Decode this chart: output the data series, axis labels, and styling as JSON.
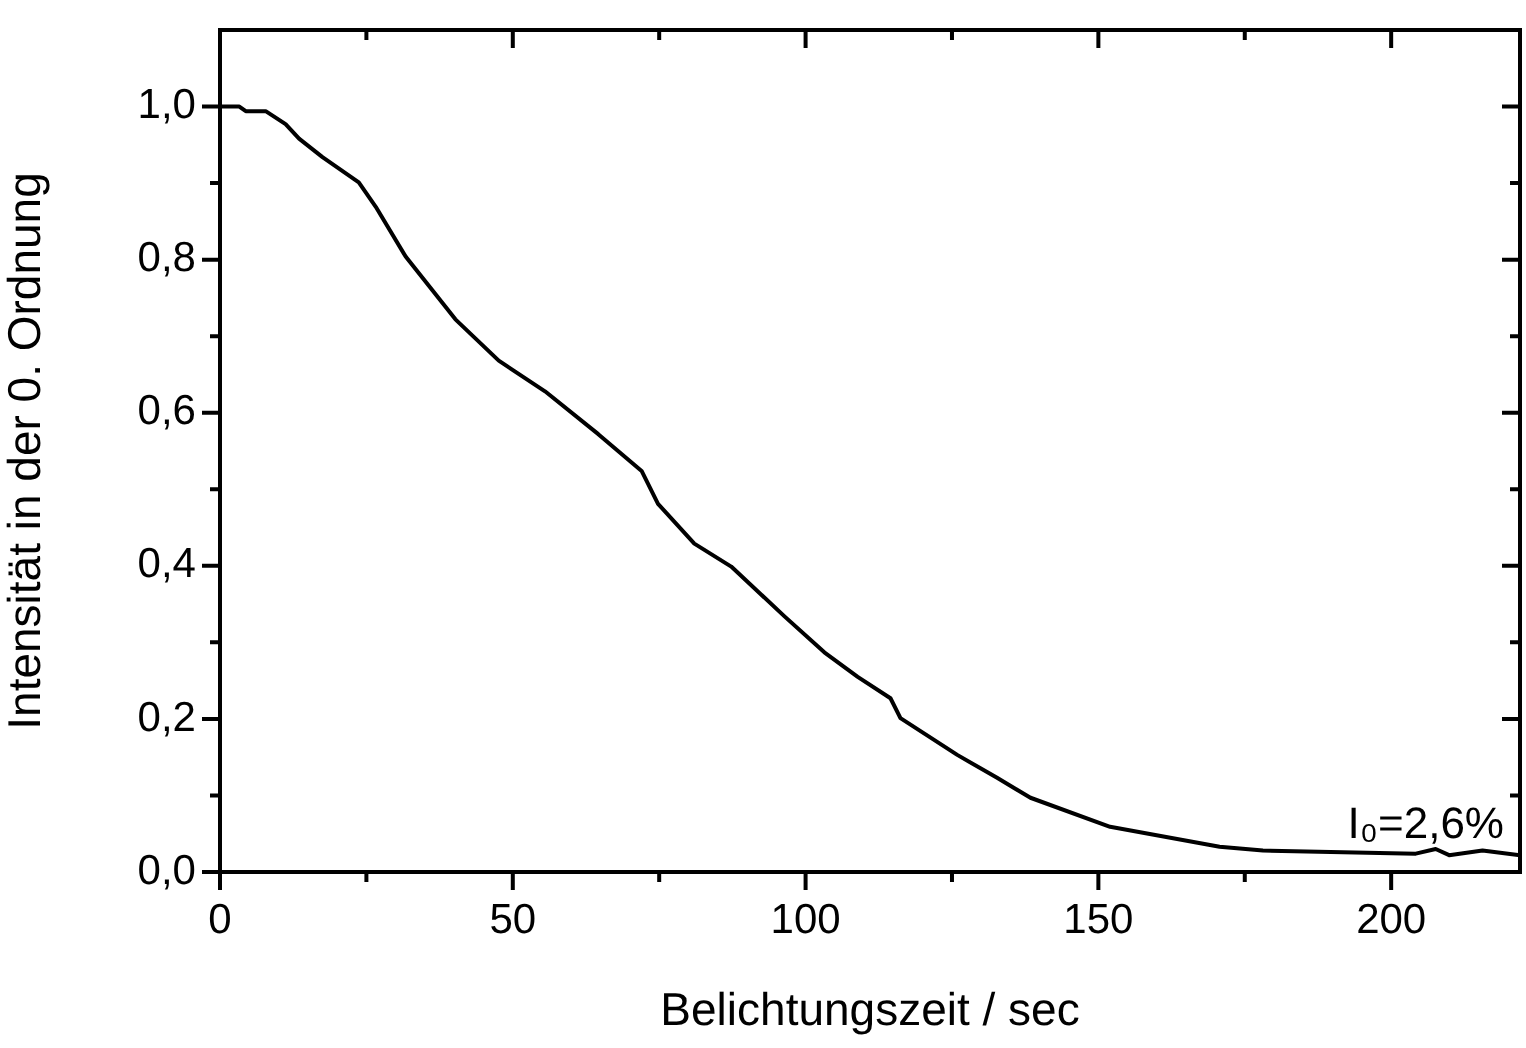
{
  "chart_data": {
    "type": "line",
    "xlabel": "Belichtungszeit / sec",
    "ylabel": "Intensität in der 0. Ordnung",
    "series": [
      {
        "color": "#000000",
        "x": [
          0,
          3.3,
          4.4,
          7.8,
          11.2,
          13.5,
          17.5,
          23.7,
          26.6,
          31.7,
          40.2,
          47.6,
          55.5,
          64.6,
          72.0,
          74.8,
          81.0,
          87.3,
          96.4,
          103.2,
          108.9,
          114.5,
          116.2,
          125.9,
          132.7,
          138.4,
          152.0,
          170.7,
          178.1,
          204.2,
          207.6,
          209.9,
          215.6,
          222
        ],
        "values": [
          1.0,
          1.0,
          0.994,
          0.994,
          0.977,
          0.958,
          0.934,
          0.901,
          0.869,
          0.804,
          0.722,
          0.668,
          0.628,
          0.572,
          0.524,
          0.481,
          0.429,
          0.399,
          0.334,
          0.287,
          0.255,
          0.227,
          0.201,
          0.153,
          0.123,
          0.097,
          0.059,
          0.033,
          0.028,
          0.024,
          0.03,
          0.022,
          0.028,
          0.022
        ]
      }
    ],
    "xlim": [
      0,
      222
    ],
    "xticks": [
      0,
      {
        "value": 25,
        "label": null
      },
      50,
      {
        "value": 75,
        "label": null
      },
      100,
      {
        "value": 125,
        "label": null
      },
      150,
      {
        "value": 175,
        "label": null
      },
      200
    ],
    "ylim": [
      0,
      1.1
    ],
    "yticks": [
      {
        "value": 0,
        "label": "0,0"
      },
      {
        "value": 0.1,
        "label": null
      },
      {
        "value": 0.2,
        "label": "0,2"
      },
      {
        "value": 0.3,
        "label": null
      },
      {
        "value": 0.4,
        "label": "0,4"
      },
      {
        "value": 0.5,
        "label": null
      },
      {
        "value": 0.6,
        "label": "0,6"
      },
      {
        "value": 0.7,
        "label": null
      },
      {
        "value": 0.8,
        "label": "0,8"
      },
      {
        "value": 0.9,
        "label": null
      },
      {
        "value": 1.0,
        "label": "1,0"
      }
    ],
    "annotations": [
      "I₀=2,6%"
    ],
    "grid": false,
    "legend": false,
    "marker": "none",
    "line_style": "solid"
  }
}
